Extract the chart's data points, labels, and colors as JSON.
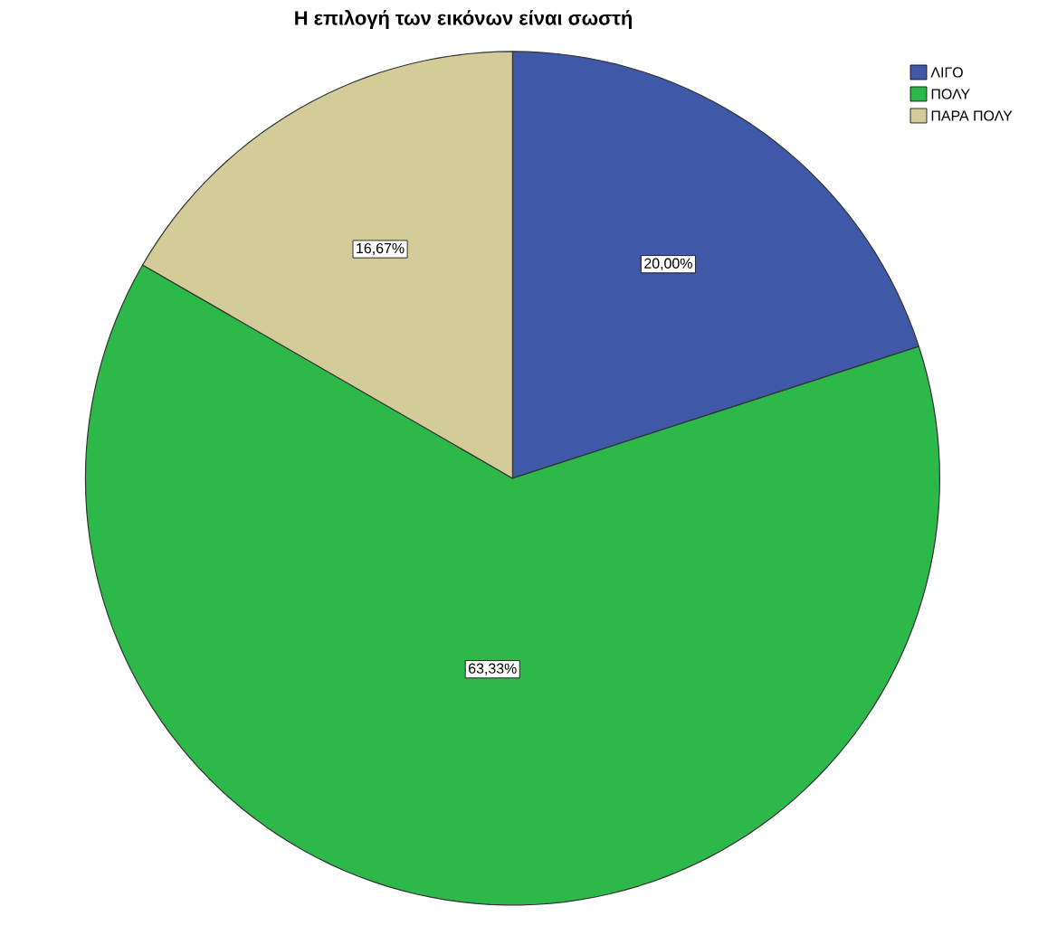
{
  "chart_data": {
    "type": "pie",
    "title": "Η επιλογή των εικόνων είναι σωστή",
    "categories": [
      "ΛΙΓΟ",
      "ΠΟΛΥ",
      "ΠΑΡΑ ΠΟΛΥ"
    ],
    "values": [
      20.0,
      63.33,
      16.67
    ],
    "value_labels": [
      "20,00%",
      "63,33%",
      "16,67%"
    ],
    "colors": [
      "#3f58a8",
      "#2db84a",
      "#d4cc98"
    ],
    "legend": "top right"
  }
}
